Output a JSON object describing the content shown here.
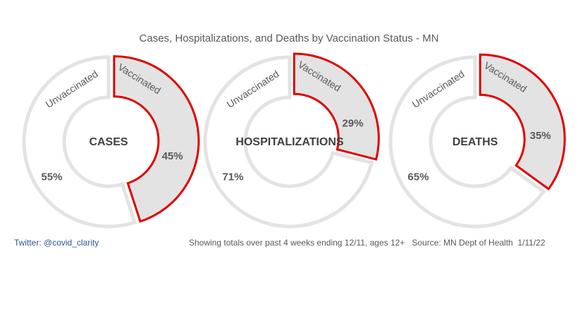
{
  "title": "Cases, Hospitalizations, and Deaths by Vaccination Status - MN",
  "chart_data": [
    {
      "type": "pie",
      "title": "CASES",
      "categories": [
        "Vaccinated",
        "Unvaccinated"
      ],
      "values": [
        45,
        55
      ],
      "labels": [
        "45%",
        "55%"
      ],
      "colors": {
        "vaccinated_fill": "#e3e3e3",
        "vaccinated_border": "#e00000",
        "unvaccinated_fill": "#ffffff",
        "unvaccinated_border": "#e3e3e3"
      }
    },
    {
      "type": "pie",
      "title": "HOSPITALIZATIONS",
      "categories": [
        "Vaccinated",
        "Unvaccinated"
      ],
      "values": [
        29,
        71
      ],
      "labels": [
        "29%",
        "71%"
      ],
      "colors": {
        "vaccinated_fill": "#e3e3e3",
        "vaccinated_border": "#e00000",
        "unvaccinated_fill": "#ffffff",
        "unvaccinated_border": "#e3e3e3"
      }
    },
    {
      "type": "pie",
      "title": "DEATHS",
      "categories": [
        "Vaccinated",
        "Unvaccinated"
      ],
      "values": [
        35,
        65
      ],
      "labels": [
        "35%",
        "65%"
      ],
      "colors": {
        "vaccinated_fill": "#e3e3e3",
        "vaccinated_border": "#e00000",
        "unvaccinated_fill": "#ffffff",
        "unvaccinated_border": "#e3e3e3"
      }
    }
  ],
  "footer": {
    "twitter": "Twitter: @covid_clarity",
    "note": "Showing totals over past 4 weeks ending 12/11, ages 12+   Source: MN Dept of Health  1/11/22"
  }
}
